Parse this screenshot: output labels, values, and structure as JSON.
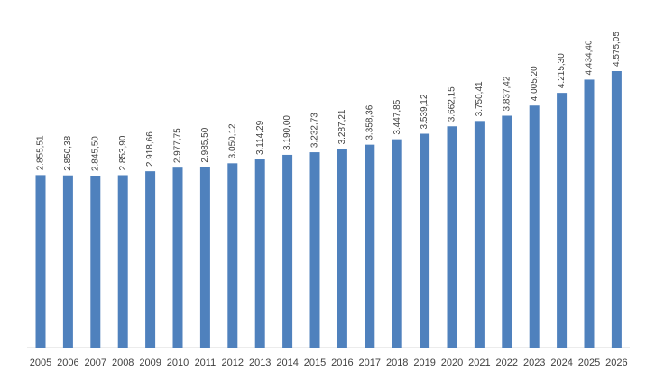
{
  "chart_data": {
    "type": "bar",
    "categories": [
      "2005",
      "2006",
      "2007",
      "2008",
      "2009",
      "2010",
      "2011",
      "2012",
      "2013",
      "2014",
      "2015",
      "2016",
      "2017",
      "2018",
      "2019",
      "2020",
      "2021",
      "2022",
      "2023",
      "2024",
      "2025",
      "2026"
    ],
    "values": [
      2855.51,
      2850.38,
      2845.5,
      2853.9,
      2918.66,
      2977.75,
      2985.5,
      3050.12,
      3114.29,
      3190.0,
      3232.73,
      3287.21,
      3358.36,
      3447.85,
      3539.12,
      3662.15,
      3750.41,
      3837.42,
      4005.2,
      4215.3,
      4434.4,
      4575.05
    ],
    "data_labels": [
      "2.855,51",
      "2.850,38",
      "2.845,50",
      "2.853,90",
      "2.918,66",
      "2.977,75",
      "2.985,50",
      "3.050,12",
      "3.114,29",
      "3.190,00",
      "3.232,73",
      "3.287,21",
      "3.358,36",
      "3.447,85",
      "3.539,12",
      "3.662,15",
      "3.750,41",
      "3.837,42",
      "4.005,20",
      "4.215,30",
      "4.434,40",
      "4.575,05"
    ],
    "title": "",
    "xlabel": "",
    "ylabel": "",
    "ylim": [
      0,
      5000
    ],
    "grid": false,
    "legend": "none",
    "bar_color": "#4f81bd"
  }
}
